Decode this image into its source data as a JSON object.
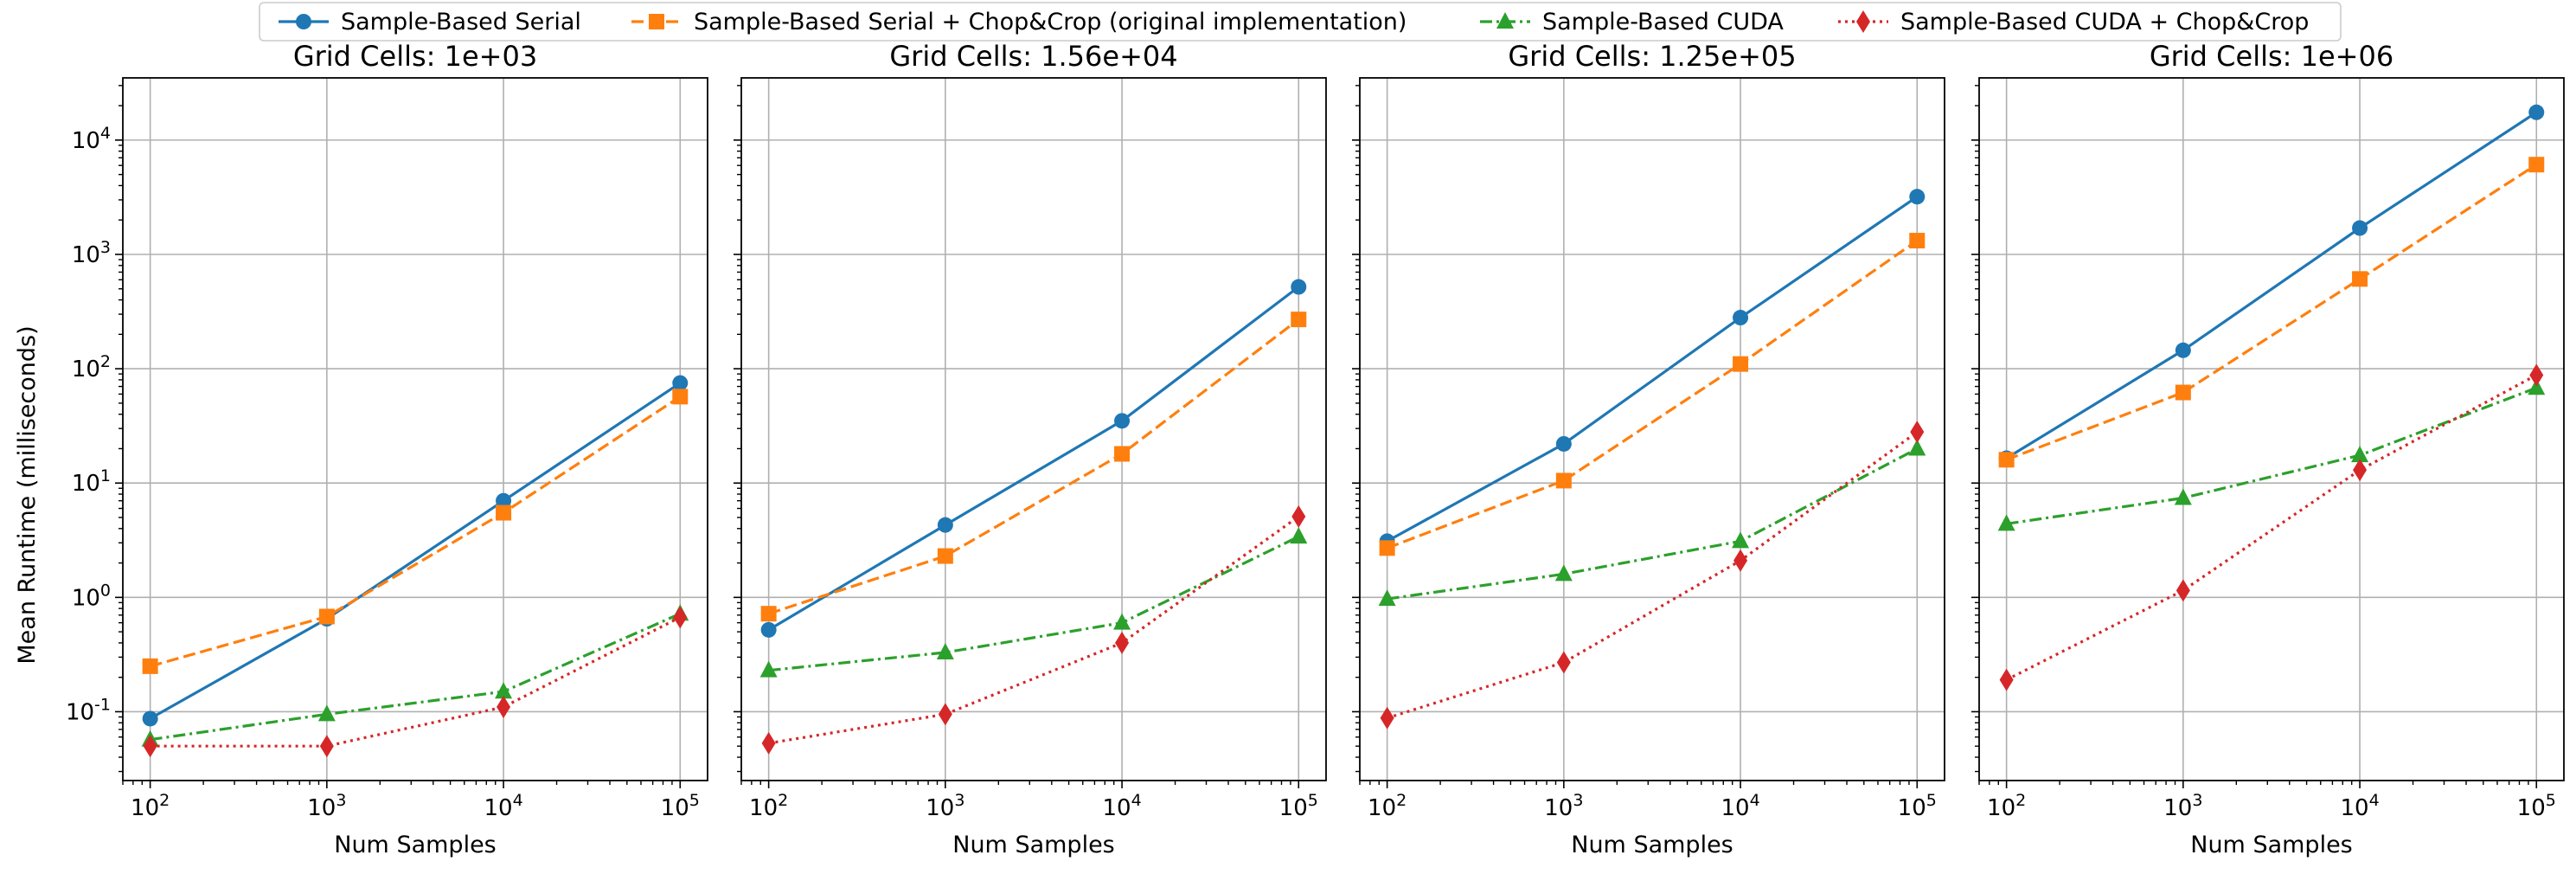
{
  "figure": {
    "ylabel": "Mean Runtime (milliseconds)",
    "xlabel": "Num Samples"
  },
  "legend": {
    "placement": "top-center",
    "entries": [
      {
        "label": "Sample-Based Serial",
        "color": "#1f77b4",
        "marker": "circle",
        "dash": "solid"
      },
      {
        "label": "Sample-Based Serial + Chop&Crop (original implementation)",
        "color": "#ff7f0e",
        "marker": "square",
        "dash": "dashed"
      },
      {
        "label": "Sample-Based CUDA",
        "color": "#2ca02c",
        "marker": "triangle",
        "dash": "dashdot"
      },
      {
        "label": "Sample-Based CUDA + Chop&Crop",
        "color": "#d62728",
        "marker": "diamond",
        "dash": "dotted"
      }
    ]
  },
  "chart_data": [
    {
      "type": "line",
      "title": "Grid Cells: 1e+03",
      "xscale": "log",
      "yscale": "log",
      "x": [
        100,
        1000,
        10000,
        100000
      ],
      "xticks": [
        "10^2",
        "10^3",
        "10^4",
        "10^5"
      ],
      "xlim": [
        70,
        143000
      ],
      "ylim": [
        0.025,
        35000
      ],
      "yticks": [
        "10^-1",
        "10^0",
        "10^1",
        "10^2",
        "10^3",
        "10^4"
      ],
      "grid": true,
      "xlabel": "Num Samples",
      "ylabel": "Mean Runtime (milliseconds)",
      "series": [
        {
          "name": "Sample-Based Serial",
          "values": [
            0.087,
            0.65,
            7.0,
            75
          ]
        },
        {
          "name": "Sample-Based Serial + Chop&Crop (original implementation)",
          "values": [
            0.25,
            0.68,
            5.5,
            57
          ]
        },
        {
          "name": "Sample-Based CUDA",
          "values": [
            0.057,
            0.095,
            0.15,
            0.72
          ]
        },
        {
          "name": "Sample-Based CUDA + Chop&Crop",
          "values": [
            0.05,
            0.05,
            0.11,
            0.67
          ]
        }
      ]
    },
    {
      "type": "line",
      "title": "Grid Cells: 1.56e+04",
      "xscale": "log",
      "yscale": "log",
      "x": [
        100,
        1000,
        10000,
        100000
      ],
      "xticks": [
        "10^2",
        "10^3",
        "10^4",
        "10^5"
      ],
      "xlim": [
        70,
        143000
      ],
      "ylim": [
        0.025,
        35000
      ],
      "grid": true,
      "xlabel": "Num Samples",
      "series": [
        {
          "name": "Sample-Based Serial",
          "values": [
            0.52,
            4.3,
            35,
            520
          ]
        },
        {
          "name": "Sample-Based Serial + Chop&Crop (original implementation)",
          "values": [
            0.72,
            2.3,
            18,
            270
          ]
        },
        {
          "name": "Sample-Based CUDA",
          "values": [
            0.23,
            0.33,
            0.6,
            3.4
          ]
        },
        {
          "name": "Sample-Based CUDA + Chop&Crop",
          "values": [
            0.053,
            0.095,
            0.4,
            5.1
          ]
        }
      ]
    },
    {
      "type": "line",
      "title": "Grid Cells: 1.25e+05",
      "xscale": "log",
      "yscale": "log",
      "x": [
        100,
        1000,
        10000,
        100000
      ],
      "xticks": [
        "10^2",
        "10^3",
        "10^4",
        "10^5"
      ],
      "xlim": [
        70,
        143000
      ],
      "ylim": [
        0.025,
        35000
      ],
      "grid": true,
      "xlabel": "Num Samples",
      "series": [
        {
          "name": "Sample-Based Serial",
          "values": [
            3.1,
            22,
            280,
            3200
          ]
        },
        {
          "name": "Sample-Based Serial + Chop&Crop (original implementation)",
          "values": [
            2.7,
            10.5,
            110,
            1320
          ]
        },
        {
          "name": "Sample-Based CUDA",
          "values": [
            0.97,
            1.6,
            3.1,
            20
          ]
        },
        {
          "name": "Sample-Based CUDA + Chop&Crop",
          "values": [
            0.088,
            0.27,
            2.1,
            28
          ]
        }
      ]
    },
    {
      "type": "line",
      "title": "Grid Cells: 1e+06",
      "xscale": "log",
      "yscale": "log",
      "x": [
        100,
        1000,
        10000,
        100000
      ],
      "xticks": [
        "10^2",
        "10^3",
        "10^4",
        "10^5"
      ],
      "xlim": [
        70,
        143000
      ],
      "ylim": [
        0.025,
        35000
      ],
      "grid": true,
      "xlabel": "Num Samples",
      "series": [
        {
          "name": "Sample-Based Serial",
          "values": [
            16.5,
            145,
            1700,
            17500
          ]
        },
        {
          "name": "Sample-Based Serial + Chop&Crop (original implementation)",
          "values": [
            16,
            62,
            610,
            6100
          ]
        },
        {
          "name": "Sample-Based CUDA",
          "values": [
            4.4,
            7.4,
            17.5,
            68
          ]
        },
        {
          "name": "Sample-Based CUDA + Chop&Crop",
          "values": [
            0.19,
            1.15,
            13,
            88
          ]
        }
      ]
    }
  ]
}
